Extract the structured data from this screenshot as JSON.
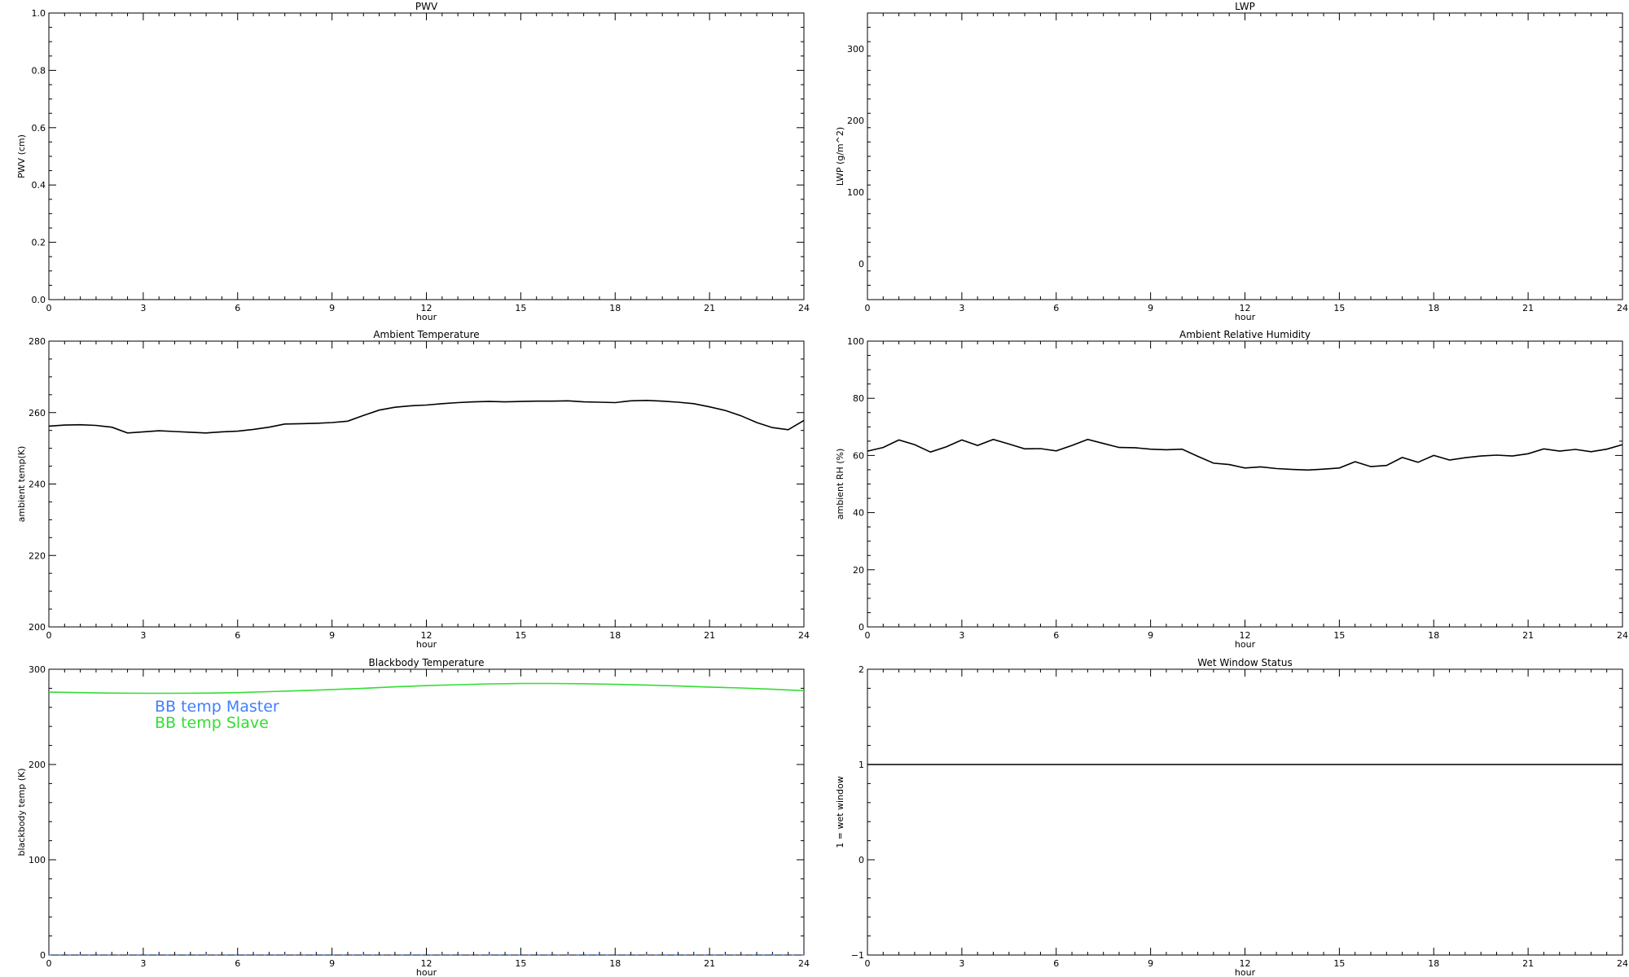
{
  "chart_data": [
    {
      "type": "line",
      "title": "PWV",
      "xlabel": "hour",
      "ylabel": "PWV (cm)",
      "xlim": [
        0,
        24
      ],
      "ylim": [
        0,
        1
      ],
      "xticks": [
        0,
        3,
        6,
        9,
        12,
        15,
        18,
        21,
        24
      ],
      "xtick_labels": [
        "0",
        "3",
        "6",
        "9",
        "12",
        "15",
        "18",
        "21",
        "24"
      ],
      "yticks": [
        0,
        0.2,
        0.4,
        0.6,
        0.8,
        1.0
      ],
      "ytick_labels": [
        "0.0",
        "0.2",
        "0.4",
        "0.6",
        "0.8",
        "1.0"
      ],
      "grid": false,
      "series": []
    },
    {
      "type": "line",
      "title": "LWP",
      "xlabel": "hour",
      "ylabel": "LWP (g/m^2)",
      "xlim": [
        0,
        24
      ],
      "ylim": [
        -50,
        350
      ],
      "xticks": [
        0,
        3,
        6,
        9,
        12,
        15,
        18,
        21,
        24
      ],
      "xtick_labels": [
        "0",
        "3",
        "6",
        "9",
        "12",
        "15",
        "18",
        "21",
        "24"
      ],
      "yticks": [
        0,
        100,
        200,
        300
      ],
      "ytick_labels": [
        "0",
        "100",
        "200",
        "300"
      ],
      "grid": false,
      "series": []
    },
    {
      "type": "line",
      "title": "Ambient Temperature",
      "xlabel": "hour",
      "ylabel": "ambient temp(K)",
      "xlim": [
        0,
        24
      ],
      "ylim": [
        200,
        280
      ],
      "xticks": [
        0,
        3,
        6,
        9,
        12,
        15,
        18,
        21,
        24
      ],
      "xtick_labels": [
        "0",
        "3",
        "6",
        "9",
        "12",
        "15",
        "18",
        "21",
        "24"
      ],
      "yticks": [
        200,
        220,
        240,
        260,
        280
      ],
      "ytick_labels": [
        "200",
        "220",
        "240",
        "260",
        "280"
      ],
      "grid": false,
      "series": [
        {
          "color": "#000000",
          "x": [
            0,
            0.5,
            1,
            1.5,
            2,
            2.5,
            3,
            3.5,
            4,
            4.5,
            5,
            5.5,
            6,
            6.5,
            7,
            7.5,
            8,
            8.5,
            9,
            9.5,
            10,
            10.5,
            11,
            11.5,
            12,
            12.5,
            13,
            13.5,
            14,
            14.5,
            15,
            15.5,
            16,
            16.5,
            17,
            17.5,
            18,
            18.5,
            19,
            19.5,
            20,
            20.5,
            21,
            21.5,
            22,
            22.5,
            23,
            23.5,
            24
          ],
          "y": [
            256.2,
            256.5,
            256.6,
            256.4,
            255.9,
            254.3,
            254.6,
            254.9,
            254.7,
            254.5,
            254.3,
            254.6,
            254.8,
            255.3,
            255.9,
            256.8,
            256.9,
            257.0,
            257.2,
            257.6,
            259.2,
            260.7,
            261.5,
            261.9,
            262.1,
            262.5,
            262.8,
            263.0,
            263.1,
            263.0,
            263.1,
            263.2,
            263.2,
            263.3,
            263.0,
            262.9,
            262.8,
            263.3,
            263.4,
            263.2,
            262.9,
            262.5,
            261.6,
            260.6,
            259.1,
            257.2,
            255.8,
            255.2,
            257.8
          ]
        }
      ]
    },
    {
      "type": "line",
      "title": "Ambient Relative Humidity",
      "xlabel": "hour",
      "ylabel": "ambient RH (%)",
      "xlim": [
        0,
        24
      ],
      "ylim": [
        0,
        100
      ],
      "xticks": [
        0,
        3,
        6,
        9,
        12,
        15,
        18,
        21,
        24
      ],
      "xtick_labels": [
        "0",
        "3",
        "6",
        "9",
        "12",
        "15",
        "18",
        "21",
        "24"
      ],
      "yticks": [
        0,
        20,
        40,
        60,
        80,
        100
      ],
      "ytick_labels": [
        "0",
        "20",
        "40",
        "60",
        "80",
        "100"
      ],
      "grid": false,
      "series": [
        {
          "color": "#000000",
          "x": [
            0,
            0.5,
            1,
            1.5,
            2,
            2.5,
            3,
            3.5,
            4,
            4.5,
            5,
            5.5,
            6,
            6.5,
            7,
            7.5,
            8,
            8.5,
            9,
            9.5,
            10,
            10.5,
            11,
            11.5,
            12,
            12.5,
            13,
            13.5,
            14,
            14.5,
            15,
            15.5,
            16,
            16.5,
            17,
            17.5,
            18,
            18.5,
            19,
            19.5,
            20,
            20.5,
            21,
            21.5,
            22,
            22.5,
            23,
            23.5,
            24
          ],
          "y": [
            61.5,
            62.8,
            65.4,
            63.8,
            61.2,
            63.0,
            65.4,
            63.5,
            65.6,
            64.0,
            62.3,
            62.4,
            61.6,
            63.5,
            65.6,
            64.2,
            62.8,
            62.7,
            62.2,
            62.0,
            62.2,
            59.7,
            57.3,
            56.8,
            55.6,
            56.0,
            55.4,
            55.1,
            54.9,
            55.2,
            55.6,
            57.8,
            56.1,
            56.5,
            59.3,
            57.6,
            60.0,
            58.4,
            59.2,
            59.8,
            60.1,
            59.8,
            60.6,
            62.3,
            61.5,
            62.1,
            61.3,
            62.2,
            63.8
          ]
        }
      ]
    },
    {
      "type": "line",
      "title": "Blackbody Temperature",
      "xlabel": "hour",
      "ylabel": "blackbody temp (K)",
      "xlim": [
        0,
        24
      ],
      "ylim": [
        0,
        300
      ],
      "xticks": [
        0,
        3,
        6,
        9,
        12,
        15,
        18,
        21,
        24
      ],
      "xtick_labels": [
        "0",
        "3",
        "6",
        "9",
        "12",
        "15",
        "18",
        "21",
        "24"
      ],
      "yticks": [
        0,
        100,
        200,
        300
      ],
      "ytick_labels": [
        "0",
        "100",
        "200",
        "300"
      ],
      "grid": false,
      "legend": "top-left",
      "series": [
        {
          "name": "BB temp Master",
          "color": "#3f7fff",
          "x": [
            0,
            1,
            2,
            3,
            4,
            5,
            6,
            7,
            8,
            9,
            10,
            11,
            12,
            13,
            14,
            15,
            16,
            17,
            18,
            19,
            20,
            21,
            22,
            23,
            24
          ],
          "y": [
            0,
            0,
            0,
            0,
            0,
            0,
            0,
            0,
            0,
            0,
            0,
            0,
            0,
            0,
            0,
            0,
            0,
            0,
            0,
            0,
            0,
            0,
            0,
            0,
            0
          ]
        },
        {
          "name": "BB temp Slave",
          "color": "#33dd33",
          "x": [
            0,
            1,
            2,
            3,
            4,
            5,
            6,
            7,
            8,
            9,
            10,
            11,
            12,
            13,
            14,
            15,
            16,
            17,
            18,
            19,
            20,
            21,
            22,
            23,
            24
          ],
          "y": [
            276,
            275.5,
            275,
            274.8,
            274.8,
            275,
            275.5,
            276.5,
            277.5,
            278.7,
            280,
            281.5,
            282.8,
            283.8,
            284.6,
            285,
            285,
            284.8,
            284.2,
            283.4,
            282.4,
            281.3,
            280.3,
            279,
            277.5
          ]
        }
      ]
    },
    {
      "type": "line",
      "title": "Wet Window Status",
      "xlabel": "hour",
      "ylabel": "1 = wet window",
      "xlim": [
        0,
        24
      ],
      "ylim": [
        -1,
        2
      ],
      "xticks": [
        0,
        3,
        6,
        9,
        12,
        15,
        18,
        21,
        24
      ],
      "xtick_labels": [
        "0",
        "3",
        "6",
        "9",
        "12",
        "15",
        "18",
        "21",
        "24"
      ],
      "yticks": [
        -1,
        0,
        1,
        2
      ],
      "ytick_labels": [
        "−1",
        "0",
        "1",
        "2"
      ],
      "grid": false,
      "series": [
        {
          "color": "#000000",
          "x": [
            0,
            24
          ],
          "y": [
            1,
            1
          ]
        }
      ]
    }
  ]
}
